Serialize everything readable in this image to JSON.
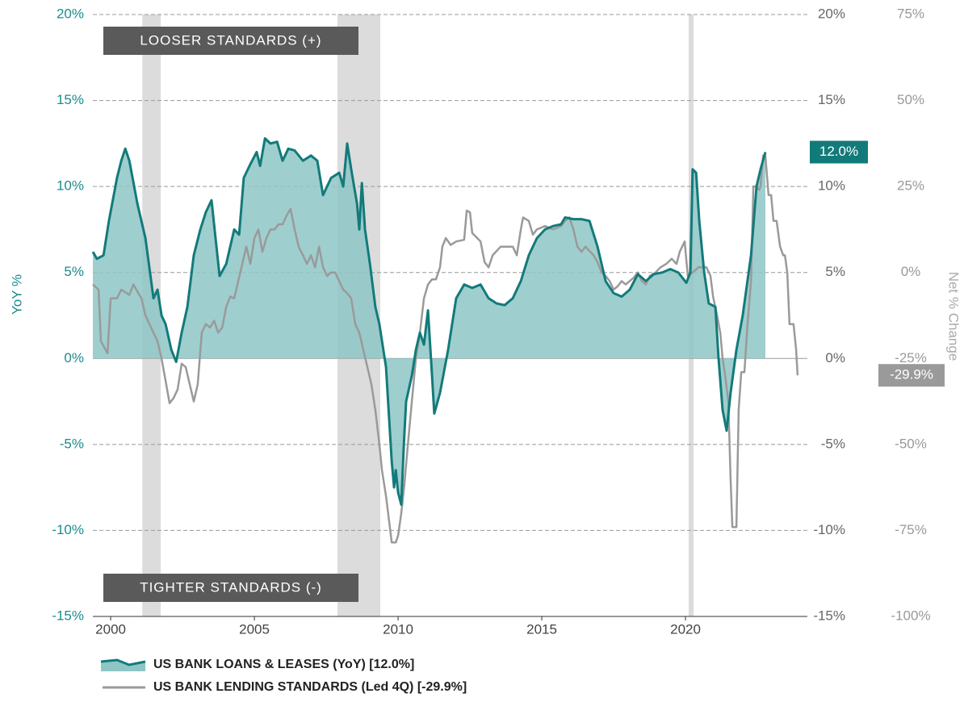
{
  "chart_data": {
    "type": "line",
    "annotations": [
      "LOOSER STANDARDS (+)",
      "TIGHTER STANDARDS (-)"
    ],
    "ylabel": "YoY %",
    "y2label": "Net % Change",
    "xlim": [
      1999.38,
      2024.1
    ],
    "xticks": [
      2000,
      2005,
      2010,
      2015,
      2020
    ],
    "ylim": [
      -15,
      20
    ],
    "yticks": [
      {
        "value": -15,
        "label": "-15%"
      },
      {
        "value": -10,
        "label": "-10%"
      },
      {
        "value": -5,
        "label": "-5%"
      },
      {
        "value": 0,
        "label": "0%"
      },
      {
        "value": 5,
        "label": "5%"
      },
      {
        "value": 10,
        "label": "10%"
      },
      {
        "value": 15,
        "label": "15%"
      },
      {
        "value": 20,
        "label": "20%"
      }
    ],
    "y2lim": [
      -100,
      75
    ],
    "y2ticks": [
      {
        "value": -100,
        "label": "-100%"
      },
      {
        "value": -75,
        "label": "-75%"
      },
      {
        "value": -50,
        "label": "-50%"
      },
      {
        "value": -25,
        "label": "-25%"
      },
      {
        "value": 0,
        "label": "0%"
      },
      {
        "value": 25,
        "label": "25%"
      },
      {
        "value": 50,
        "label": "50%"
      },
      {
        "value": 75,
        "label": "75%"
      }
    ],
    "grid": true,
    "shaded_periods": [
      [
        2001.1,
        2001.74
      ],
      [
        2007.89,
        2009.38
      ],
      [
        2020.11,
        2020.28
      ]
    ],
    "series": [
      {
        "name": "US BANK LOANS & LEASES (YoY) [12.0%]",
        "color": "#137a7a",
        "fill": "#8ec5c5",
        "end_label": "12.0%",
        "x": [
          1999.38,
          1999.52,
          1999.75,
          1999.94,
          2000.22,
          2000.37,
          2000.51,
          2000.65,
          2000.93,
          2001.21,
          2001.49,
          2001.63,
          2001.77,
          2001.91,
          2002.11,
          2002.28,
          2002.47,
          2002.67,
          2002.89,
          2003.12,
          2003.31,
          2003.51,
          2003.68,
          2003.79,
          2004.02,
          2004.3,
          2004.47,
          2004.63,
          2004.86,
          2005.08,
          2005.2,
          2005.37,
          2005.56,
          2005.79,
          2005.98,
          2006.18,
          2006.4,
          2006.69,
          2006.97,
          2007.19,
          2007.39,
          2007.67,
          2007.95,
          2008.09,
          2008.23,
          2008.37,
          2008.57,
          2008.65,
          2008.74,
          2008.85,
          2009.02,
          2009.21,
          2009.35,
          2009.58,
          2009.78,
          2009.86,
          2009.92,
          2010.0,
          2010.11,
          2010.2,
          2010.28,
          2010.48,
          2010.62,
          2010.76,
          2010.9,
          2011.04,
          2011.18,
          2011.26,
          2011.46,
          2011.74,
          2012.02,
          2012.3,
          2012.58,
          2012.87,
          2013.15,
          2013.43,
          2013.71,
          2013.99,
          2014.27,
          2014.55,
          2014.83,
          2015.11,
          2015.39,
          2015.67,
          2015.81,
          2016.1,
          2016.38,
          2016.66,
          2016.94,
          2017.22,
          2017.5,
          2017.78,
          2018.06,
          2018.34,
          2018.62,
          2018.9,
          2019.19,
          2019.47,
          2019.75,
          2020.03,
          2020.17,
          2020.25,
          2020.37,
          2020.48,
          2020.65,
          2020.81,
          2021.04,
          2021.15,
          2021.29,
          2021.43,
          2021.57,
          2021.77,
          2021.99,
          2022.13,
          2022.28,
          2022.47,
          2022.61,
          2022.78
        ],
        "values": [
          6.2,
          5.8,
          6.0,
          8,
          10.5,
          11.5,
          12.2,
          11.5,
          9,
          7,
          3.5,
          4,
          2.5,
          2,
          0.5,
          -0.2,
          1.5,
          3,
          6,
          7.5,
          8.5,
          9.2,
          6.5,
          4.8,
          5.5,
          7.5,
          7.2,
          10.5,
          11.3,
          12,
          11.2,
          12.8,
          12.5,
          12.6,
          11.5,
          12.2,
          12.1,
          11.5,
          11.8,
          11.5,
          9.5,
          10.5,
          10.8,
          10,
          12.5,
          11,
          9,
          7.5,
          10.2,
          7.5,
          5.5,
          3,
          2,
          -0.5,
          -6,
          -7.5,
          -6.5,
          -7.8,
          -8.5,
          -5,
          -2.5,
          -1,
          0.5,
          1.5,
          0.8,
          2.8,
          -1,
          -3.2,
          -2,
          0.5,
          3.5,
          4.3,
          4.1,
          4.3,
          3.5,
          3.2,
          3.1,
          3.5,
          4.5,
          6,
          7,
          7.5,
          7.7,
          7.8,
          8.2,
          8.1,
          8.1,
          8.0,
          6.5,
          4.5,
          3.8,
          3.6,
          4,
          4.9,
          4.5,
          4.9,
          5.0,
          5.2,
          5.0,
          4.4,
          5.0,
          11.0,
          10.8,
          8,
          5,
          3.2,
          3.0,
          0,
          -3,
          -4.2,
          -2,
          0.5,
          2.5,
          4.2,
          6,
          10,
          11,
          12.0
        ]
      },
      {
        "name": "US BANK LENDING STANDARDS (Led 4Q) [-29.9%]",
        "color": "#9a9a9a",
        "axis": "y2",
        "end_label": "-29.9%",
        "x": [
          1999.38,
          1999.58,
          1999.66,
          1999.89,
          2000.0,
          2000.22,
          2000.37,
          2000.65,
          2000.79,
          2001.07,
          2001.21,
          2001.35,
          2001.49,
          2001.63,
          2001.77,
          2001.91,
          2002.05,
          2002.19,
          2002.33,
          2002.47,
          2002.61,
          2002.75,
          2002.89,
          2003.03,
          2003.17,
          2003.31,
          2003.46,
          2003.6,
          2003.74,
          2003.88,
          2004.02,
          2004.16,
          2004.3,
          2004.44,
          2004.58,
          2004.72,
          2004.86,
          2005.0,
          2005.14,
          2005.28,
          2005.42,
          2005.56,
          2005.7,
          2005.84,
          2005.98,
          2006.12,
          2006.26,
          2006.4,
          2006.54,
          2006.69,
          2006.83,
          2006.97,
          2007.11,
          2007.25,
          2007.39,
          2007.53,
          2007.67,
          2007.81,
          2007.95,
          2008.09,
          2008.23,
          2008.37,
          2008.51,
          2008.65,
          2008.79,
          2008.93,
          2009.07,
          2009.21,
          2009.35,
          2009.44,
          2009.58,
          2009.78,
          2009.92,
          2010.0,
          2010.11,
          2010.22,
          2010.34,
          2010.48,
          2010.62,
          2010.76,
          2010.9,
          2011.04,
          2011.18,
          2011.32,
          2011.46,
          2011.54,
          2011.66,
          2011.83,
          2012.02,
          2012.3,
          2012.39,
          2012.5,
          2012.58,
          2012.87,
          2013.01,
          2013.15,
          2013.29,
          2013.57,
          2013.99,
          2014.13,
          2014.27,
          2014.35,
          2014.55,
          2014.69,
          2014.83,
          2015.11,
          2015.39,
          2015.67,
          2015.81,
          2015.96,
          2016.1,
          2016.24,
          2016.38,
          2016.52,
          2016.8,
          2016.94,
          2017.08,
          2017.22,
          2017.36,
          2017.5,
          2017.64,
          2017.78,
          2017.92,
          2018.2,
          2018.34,
          2018.48,
          2018.62,
          2018.76,
          2018.96,
          2019.13,
          2019.33,
          2019.52,
          2019.69,
          2019.8,
          2019.97,
          2020.08,
          2020.25,
          2020.45,
          2020.59,
          2020.73,
          2020.87,
          2020.96,
          2021.1,
          2021.21,
          2021.29,
          2021.38,
          2021.49,
          2021.57,
          2021.63,
          2021.77,
          2021.85,
          2021.94,
          2022.05,
          2022.16,
          2022.28,
          2022.36,
          2022.47,
          2022.56,
          2022.61,
          2022.7,
          2022.78,
          2022.89,
          2022.98,
          2023.06,
          2023.17,
          2023.29,
          2023.4,
          2023.46,
          2023.54,
          2023.62,
          2023.76,
          2023.85,
          2023.9
        ],
        "values": [
          -3.5,
          -5,
          -20,
          -23.5,
          -7.5,
          -7.5,
          -5,
          -6.5,
          -3.5,
          -7.5,
          -12.5,
          -15,
          -17.5,
          -20,
          -25,
          -31.5,
          -38,
          -36.5,
          -34,
          -26.5,
          -27.5,
          -32.5,
          -37.5,
          -32.5,
          -17.5,
          -15,
          -16,
          -14,
          -17.5,
          -16,
          -10,
          -7,
          -7.5,
          -2.5,
          2.5,
          7.5,
          2.5,
          10,
          12.5,
          6,
          10,
          12.5,
          12.5,
          14,
          14,
          16.5,
          18.5,
          12.5,
          7.5,
          5,
          2.5,
          5,
          1.5,
          7.5,
          1.5,
          -1,
          0,
          0,
          -2.5,
          -5,
          -6,
          -7.5,
          -15,
          -17.5,
          -22.5,
          -27.5,
          -32.5,
          -40,
          -50,
          -57.5,
          -65,
          -78.5,
          -78.5,
          -76.5,
          -70,
          -61.5,
          -50,
          -37.5,
          -25,
          -17.5,
          -7.5,
          -3.5,
          -2,
          -2,
          1.5,
          7.5,
          10,
          8,
          9,
          9.5,
          18,
          17.5,
          11.5,
          9,
          3,
          1.5,
          5,
          7.5,
          7.5,
          5,
          12.5,
          16,
          15,
          11,
          12.5,
          13.5,
          12.5,
          13.5,
          15,
          16,
          12.5,
          7.5,
          6,
          7.5,
          5,
          3,
          0,
          -1,
          -2.5,
          -5,
          -4,
          -2.5,
          -3.5,
          -1.5,
          0,
          -2.5,
          -3.5,
          -1,
          0,
          1.5,
          2.5,
          4,
          2.5,
          6,
          9,
          -1,
          0,
          1.5,
          1.5,
          1.5,
          -1,
          -7,
          -12.5,
          -17.5,
          -25,
          -30,
          -37.5,
          -60,
          -74,
          -74,
          -40,
          -29,
          -29,
          -15,
          -2.5,
          25,
          25,
          24,
          25,
          34,
          34,
          22.5,
          22.5,
          15,
          15,
          7.5,
          5,
          5,
          0,
          -15,
          -15,
          -22.5,
          -29.9
        ]
      }
    ]
  }
}
